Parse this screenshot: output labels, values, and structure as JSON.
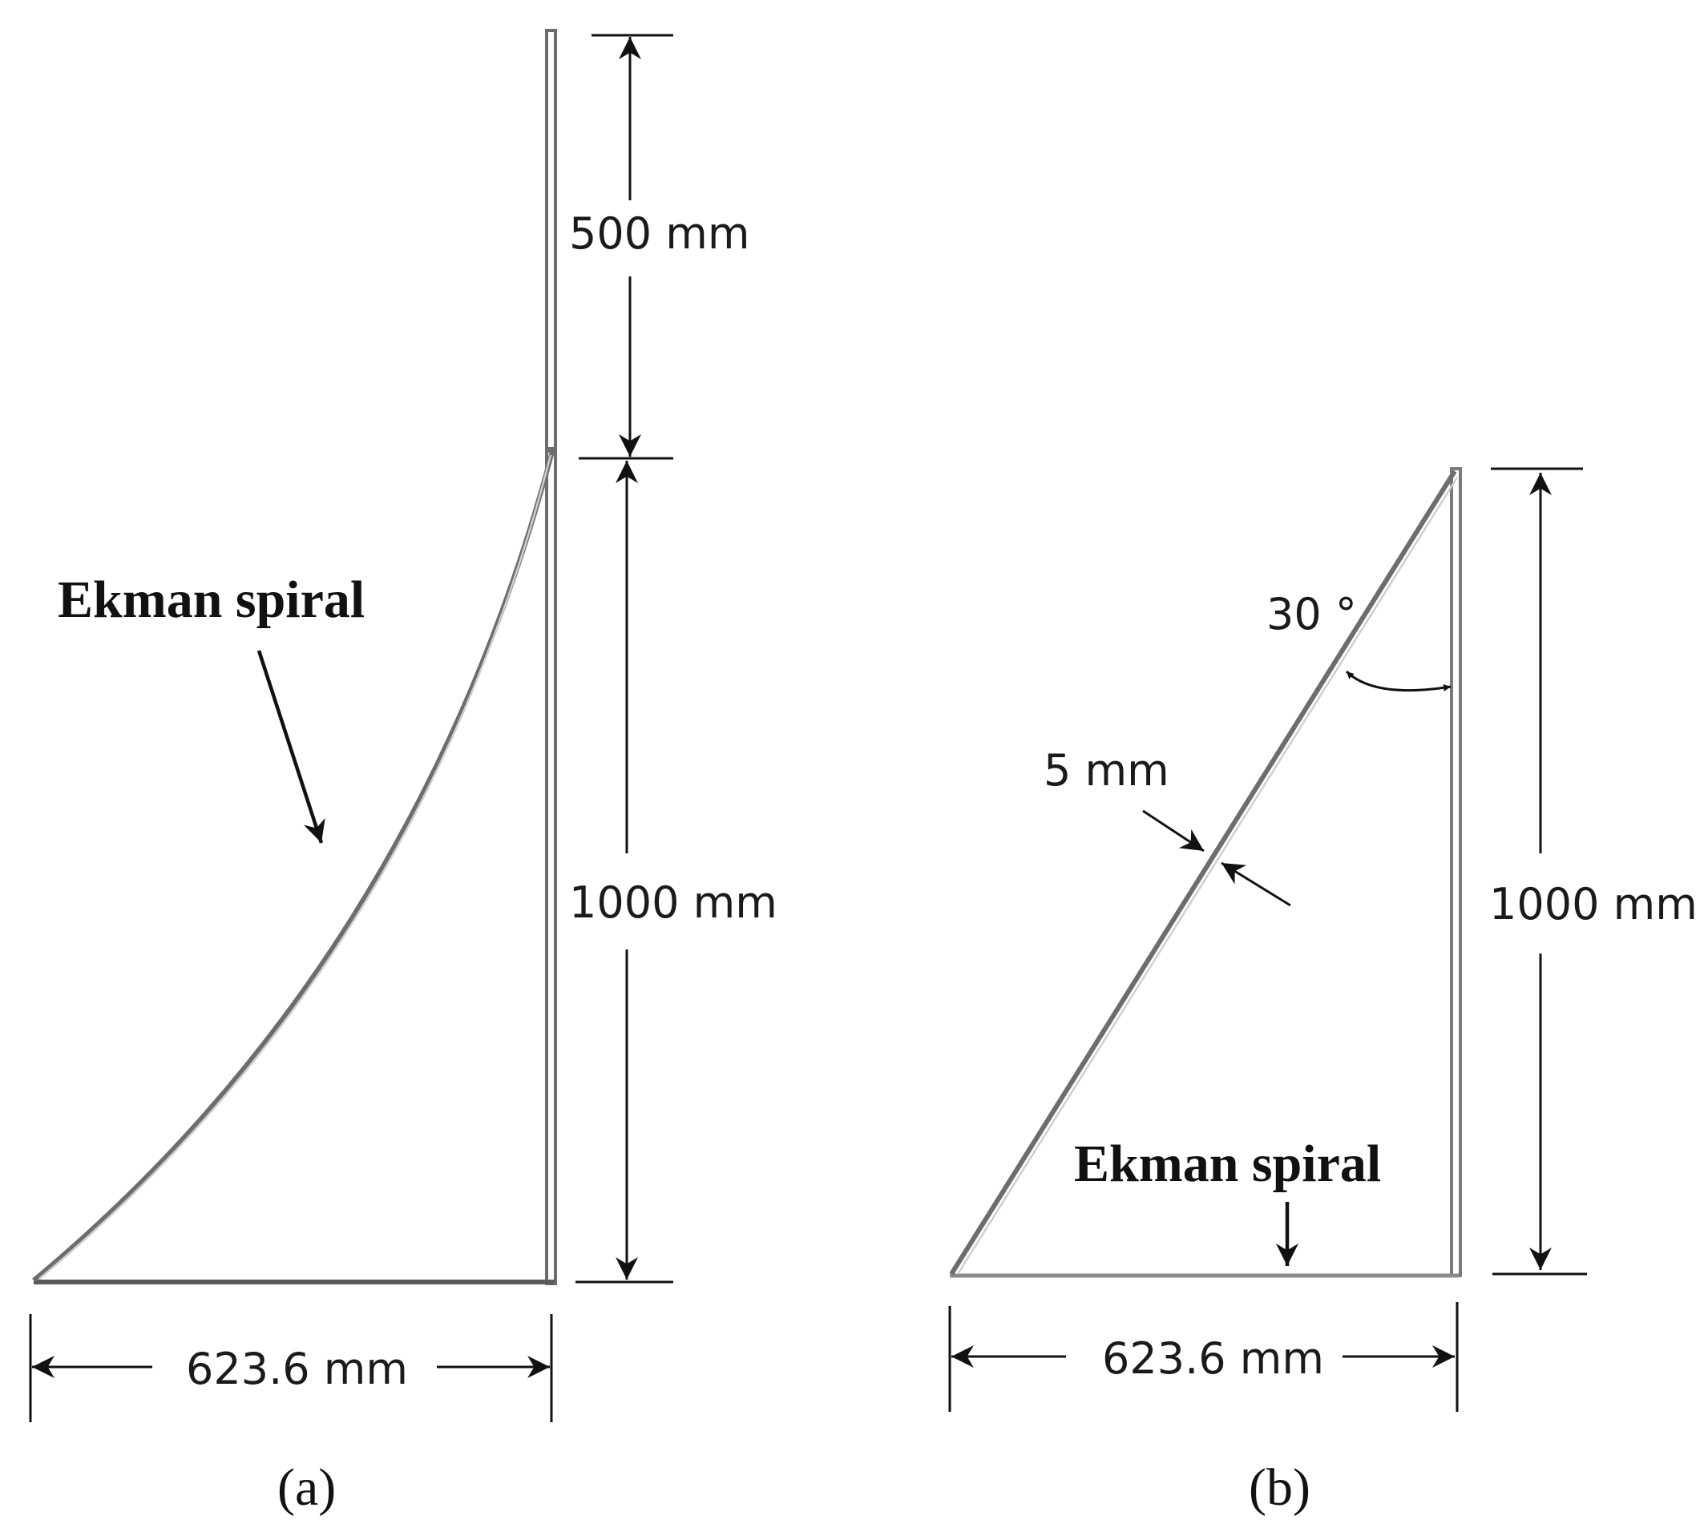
{
  "panel_a": {
    "dim_top_height": "500 mm",
    "dim_main_height": "1000 mm",
    "dim_width": "623.6 mm",
    "callout": "Ekman spiral",
    "caption": "(a)"
  },
  "panel_b": {
    "dim_angle": "30 °",
    "dim_thickness": "5 mm",
    "dim_height": "1000 mm",
    "dim_width": "623.6 mm",
    "callout": "Ekman spiral",
    "caption": "(b)"
  }
}
